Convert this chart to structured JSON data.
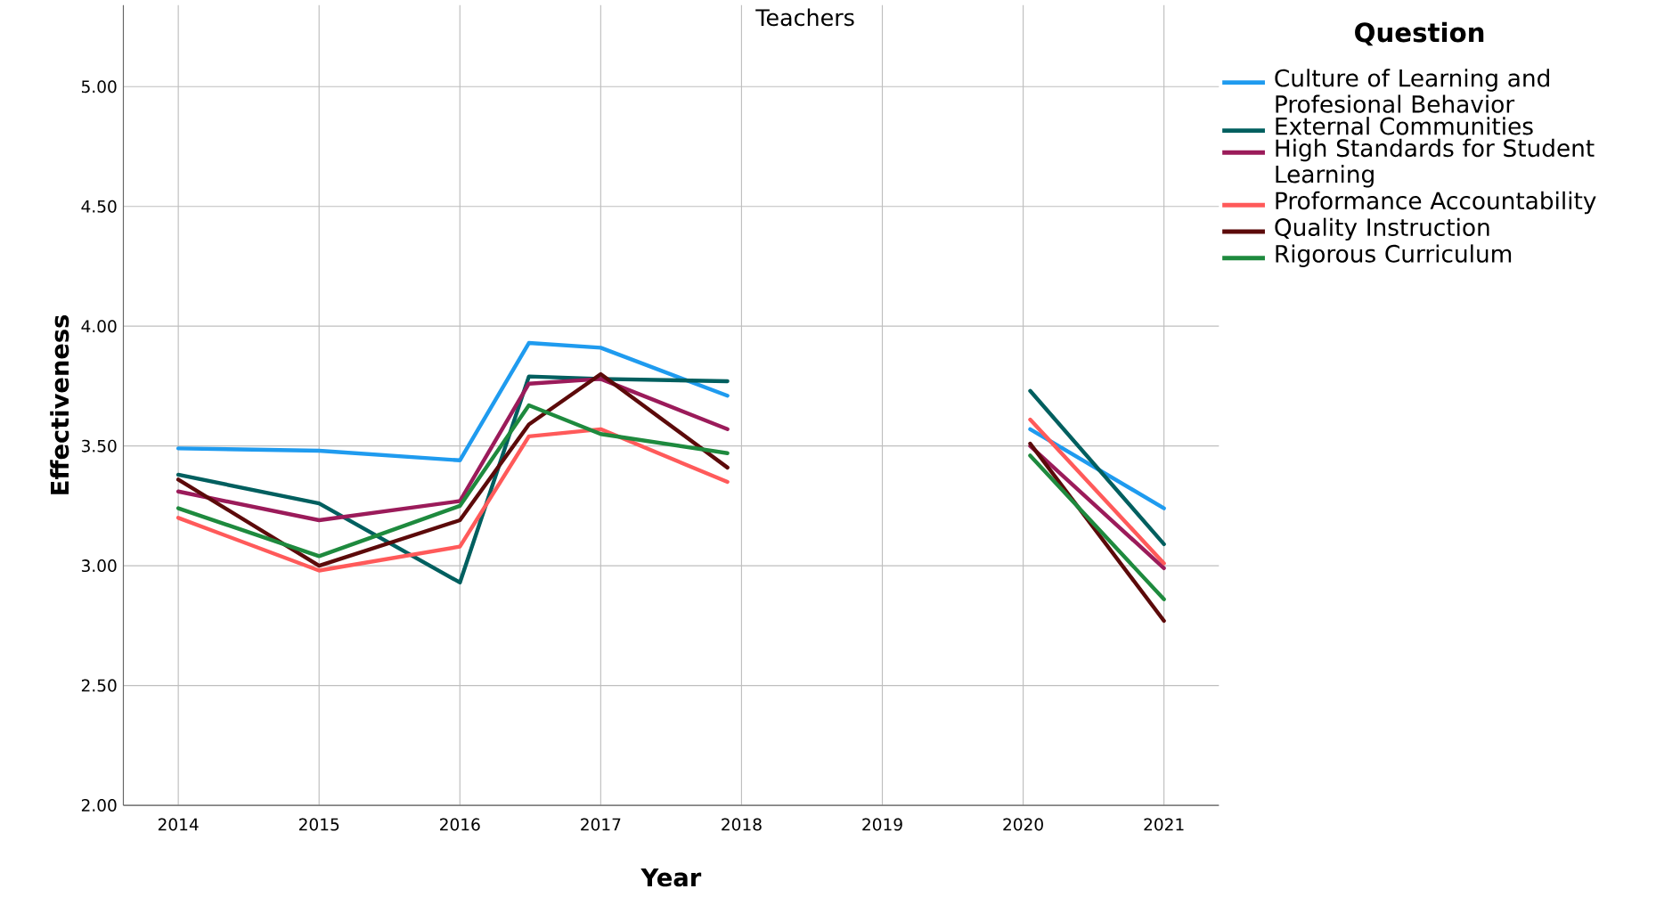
{
  "chart_data": {
    "type": "line",
    "title": "Teachers",
    "xlabel": "Year",
    "ylabel": "Effectiveness",
    "legend_title": "Question",
    "x": [
      2014,
      2015,
      2016,
      2016.49,
      2017,
      2017.9,
      2019,
      2020.05,
      2021
    ],
    "xlim": [
      2013.61,
      2021.39
    ],
    "xticks": [
      2014,
      2015,
      2016,
      2017,
      2018,
      2019,
      2020,
      2021
    ],
    "ylim": [
      2,
      5.34
    ],
    "yticks": [
      {
        "value": 2,
        "label": "2.00"
      },
      {
        "value": 2.5,
        "label": "2.50"
      },
      {
        "value": 3,
        "label": "3.00"
      },
      {
        "value": 3.5,
        "label": "3.50"
      },
      {
        "value": 4,
        "label": "4.00"
      },
      {
        "value": 4.5,
        "label": "4.50"
      },
      {
        "value": 5,
        "label": "5.00"
      }
    ],
    "grid": true,
    "legend": "top right",
    "marker": "none",
    "line_style": "solid",
    "series": [
      {
        "name": "Culture of Learning and Profesional Behavior",
        "color": "#1f9bef",
        "values": [
          3.49,
          3.48,
          3.44,
          3.93,
          3.91,
          3.71,
          null,
          3.57,
          3.24
        ]
      },
      {
        "name": "External Communities",
        "color": "#005f5f",
        "values": [
          3.38,
          3.26,
          2.93,
          3.79,
          3.78,
          3.77,
          null,
          3.73,
          3.09
        ]
      },
      {
        "name": "High Standards for Student Learning",
        "color": "#9b1b5a",
        "values": [
          3.31,
          3.19,
          3.27,
          3.76,
          3.78,
          3.57,
          null,
          3.5,
          2.99
        ]
      },
      {
        "name": "Proformance Accountability",
        "color": "#ff5a5a",
        "values": [
          3.2,
          2.98,
          3.08,
          3.54,
          3.57,
          3.35,
          null,
          3.61,
          3.01
        ]
      },
      {
        "name": "Quality Instruction",
        "color": "#5c0a0a",
        "values": [
          3.36,
          3.0,
          3.19,
          3.59,
          3.8,
          3.41,
          null,
          3.51,
          2.77
        ]
      },
      {
        "name": "Rigorous Curriculum",
        "color": "#1e8a3e",
        "values": [
          3.24,
          3.04,
          3.25,
          3.67,
          3.55,
          3.47,
          null,
          3.46,
          2.86
        ]
      }
    ]
  }
}
